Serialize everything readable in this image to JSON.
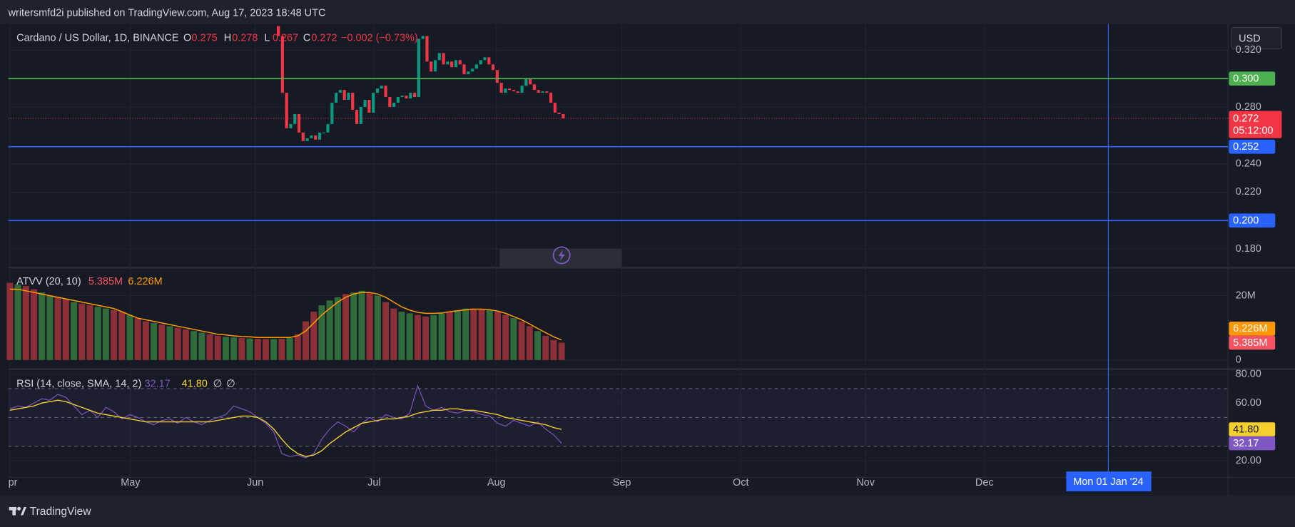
{
  "header": {
    "published": "writersmfd2i published on TradingView.com, Aug 17, 2023 18:48 UTC",
    "currency": "USD",
    "brand": "TradingView"
  },
  "time_axis": {
    "labels": [
      "pr",
      "May",
      "Jun",
      "Jul",
      "Aug",
      "Sep",
      "Oct",
      "Nov",
      "Dec"
    ],
    "cursor": "Mon 01 Jan '24"
  },
  "chart_data": [
    {
      "type": "candlestick",
      "title": "Cardano / US Dollar, 1D, BINANCE",
      "ohlc_names": [
        "O",
        "H",
        "L",
        "C"
      ],
      "ohlc": [
        0.275,
        0.278,
        0.267,
        0.272
      ],
      "change": "−0.002 (−0.73%)",
      "first_open": 0.337,
      "close": [
        0.33,
        0.29,
        0.265,
        0.268,
        0.275,
        0.262,
        0.256,
        0.258,
        0.26,
        0.257,
        0.262,
        0.262,
        0.268,
        0.283,
        0.29,
        0.292,
        0.285,
        0.29,
        0.278,
        0.268,
        0.28,
        0.285,
        0.276,
        0.29,
        0.293,
        0.295,
        0.287,
        0.28,
        0.283,
        0.287,
        0.288,
        0.286,
        0.29,
        0.287,
        0.328,
        0.33,
        0.312,
        0.305,
        0.313,
        0.318,
        0.31,
        0.312,
        0.308,
        0.313,
        0.31,
        0.303,
        0.305,
        0.307,
        0.31,
        0.313,
        0.315,
        0.31,
        0.306,
        0.297,
        0.29,
        0.293,
        0.292,
        0.291,
        0.29,
        0.295,
        0.3,
        0.296,
        0.292,
        0.29,
        0.291,
        0.29,
        0.283,
        0.276,
        0.275,
        0.272
      ],
      "up_color": "#089981",
      "down_color": "#f23645",
      "ylim": [
        0.1674,
        0.3378
      ],
      "yticks": [
        {
          "value": 0.18,
          "label": "0.180"
        },
        {
          "value": 0.22,
          "label": "0.220"
        },
        {
          "value": 0.24,
          "label": "0.240"
        },
        {
          "value": 0.28,
          "label": "0.280"
        },
        {
          "value": 0.32,
          "label": "0.320"
        }
      ],
      "levels": [
        {
          "value": 0.3,
          "label": "0.300",
          "color": "#4caf50"
        },
        {
          "value": 0.252,
          "label": "0.252",
          "color": "#2962ff"
        },
        {
          "value": 0.2,
          "label": "0.200",
          "color": "#2962ff"
        }
      ],
      "last_price": {
        "value": 0.272,
        "label": "0.272"
      },
      "countdown": "05:12:00"
    },
    {
      "type": "bar",
      "title": "ATVV (20, 10)",
      "values": [
        24,
        23.5,
        23,
        22,
        21,
        20,
        19.5,
        19,
        18,
        17.5,
        17,
        16.5,
        16,
        15.5,
        15,
        14,
        13,
        12,
        11.5,
        11,
        10.5,
        10,
        9.5,
        9,
        8.5,
        8,
        7.5,
        7.2,
        7,
        6.8,
        6.7,
        6.6,
        6.5,
        6.5,
        6.6,
        6.8,
        8,
        12,
        15,
        17,
        18.5,
        19.5,
        20.5,
        21,
        21.5,
        21,
        20,
        18,
        16,
        15,
        14.5,
        14,
        13.5,
        14,
        14.5,
        15,
        15.5,
        16,
        16,
        15.8,
        15.5,
        15,
        14,
        13,
        12,
        10.5,
        9,
        7.5,
        6.2,
        5.385
      ],
      "colors": [
        "#8c2f36",
        "#2f6b3b",
        "#8c2f36",
        "#8c2f36",
        "#2f6b3b",
        "#2f6b3b",
        "#8c2f36",
        "#8c2f36",
        "#2f6b3b",
        "#8c2f36",
        "#8c2f36",
        "#2f6b3b",
        "#2f6b3b",
        "#8c2f36",
        "#8c2f36",
        "#2f6b3b",
        "#8c2f36",
        "#8c2f36",
        "#2f6b3b",
        "#8c2f36",
        "#2f6b3b",
        "#8c2f36",
        "#8c2f36",
        "#2f6b3b",
        "#2f6b3b",
        "#8c2f36",
        "#8c2f36",
        "#2f6b3b",
        "#2f6b3b",
        "#8c2f36",
        "#2f6b3b",
        "#8c2f36",
        "#8c2f36",
        "#2f6b3b",
        "#8c2f36",
        "#2f6b3b",
        "#8c2f36",
        "#8c2f36",
        "#8c2f36",
        "#2f6b3b",
        "#2f6b3b",
        "#2f6b3b",
        "#8c2f36",
        "#2f6b3b",
        "#2f6b3b",
        "#8c2f36",
        "#2f6b3b",
        "#8c2f36",
        "#8c2f36",
        "#2f6b3b",
        "#2f6b3b",
        "#8c2f36",
        "#8c2f36",
        "#2f6b3b",
        "#2f6b3b",
        "#8c2f36",
        "#2f6b3b",
        "#2f6b3b",
        "#8c2f36",
        "#8c2f36",
        "#2f6b3b",
        "#8c2f36",
        "#8c2f36",
        "#2f6b3b",
        "#8c2f36",
        "#8c2f36",
        "#2f6b3b",
        "#8c2f36",
        "#8c2f36",
        "#8c2f36"
      ],
      "value_label": "5.385M",
      "value_color": "#f7525f",
      "ma": [
        22,
        22,
        21.5,
        21,
        20.5,
        20,
        19.5,
        19,
        18.5,
        18,
        17.5,
        17,
        16.5,
        16,
        15,
        14,
        13,
        12.5,
        12,
        11.5,
        11,
        10.5,
        10,
        9.5,
        9,
        8.5,
        8,
        7.8,
        7.5,
        7.3,
        7.2,
        7,
        7,
        7,
        7,
        7,
        7.5,
        9,
        11.5,
        14,
        16,
        18,
        19.5,
        20.5,
        21,
        21,
        20.5,
        19.5,
        18,
        16.5,
        15.5,
        14.8,
        14.5,
        14.5,
        14.6,
        15,
        15.3,
        15.6,
        15.8,
        15.8,
        15.6,
        15.2,
        14.5,
        13.5,
        12.5,
        11.2,
        9.8,
        8.5,
        7.2,
        6.226
      ],
      "ma_label": "6.226M",
      "ma_color": "#ff9800",
      "ylim": [
        -2.6,
        28.2
      ],
      "yticks": [
        0,
        {
          "value": 20,
          "label": "20M"
        }
      ]
    },
    {
      "type": "line",
      "title": "RSI (14, close, SMA, 14, 2)",
      "rsi": [
        56,
        58,
        57,
        60,
        63,
        62,
        66,
        64,
        58,
        52,
        55,
        50,
        57,
        54,
        49,
        52,
        50,
        47,
        45,
        48,
        49,
        46,
        50,
        47,
        45,
        48,
        50,
        52,
        58,
        56,
        54,
        50,
        46,
        40,
        25,
        23,
        24,
        22,
        25,
        35,
        42,
        47,
        44,
        40,
        46,
        50,
        47,
        52,
        50,
        49,
        53,
        72,
        58,
        55,
        57,
        54,
        53,
        55,
        54,
        52,
        51,
        46,
        44,
        48,
        46,
        44,
        47,
        42,
        38,
        32.17
      ],
      "rsi_color": "#7e57c2",
      "sma": [
        55,
        56,
        57,
        58,
        60,
        61,
        62,
        61,
        59,
        57,
        55,
        53,
        52,
        51,
        50,
        49,
        48,
        47,
        47,
        47,
        47,
        47,
        47,
        47,
        47,
        47,
        48,
        49,
        50,
        51,
        51,
        50,
        47,
        42,
        35,
        29,
        25,
        23,
        24,
        27,
        32,
        36,
        40,
        43,
        46,
        47,
        48,
        49,
        49,
        50,
        51,
        53,
        54,
        55,
        55,
        56,
        56,
        55,
        55,
        54,
        53,
        52,
        50,
        49,
        48,
        47,
        46,
        45,
        43,
        41.8
      ],
      "sma_label": "41.80",
      "sma_color": "#f5d02c",
      "extras": [
        "∅",
        "∅"
      ],
      "band_lines": [
        70,
        50,
        30
      ],
      "ylim": [
        8.6,
        82.9
      ],
      "yticks": [
        {
          "value": 80,
          "label": "80.00"
        },
        {
          "value": 60,
          "label": "60.00"
        },
        {
          "value": 20,
          "label": "20.00"
        }
      ]
    }
  ]
}
